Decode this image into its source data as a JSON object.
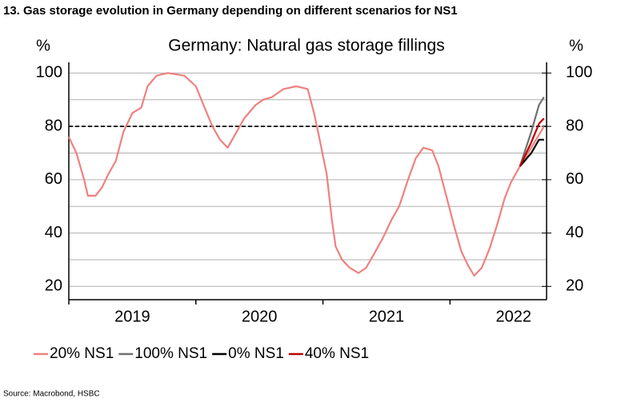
{
  "header": "13.  Gas storage evolution in Germany depending on different scenarios for NS1",
  "source": "Source: Macrobond, HSBC",
  "chart_data": {
    "type": "line",
    "title": "Germany: Natural gas storage fillings",
    "ylabel": "%",
    "y2label": "%",
    "xlim": [
      2019,
      2022.76
    ],
    "xticks": [
      2019,
      2020,
      2021,
      2022
    ],
    "ylim": [
      15,
      104
    ],
    "yticks": [
      20,
      40,
      60,
      80,
      100
    ],
    "minor_yticks": [
      30,
      50,
      70,
      90
    ],
    "y2lim": [
      15,
      104
    ],
    "y2ticks": [
      20,
      40,
      60,
      80,
      100
    ],
    "hline": 80,
    "grid": true,
    "legend": "bottom",
    "series": [
      {
        "name": "20% NS1",
        "color": "#f08080",
        "x": [
          2019.0,
          2019.06,
          2019.12,
          2019.15,
          2019.21,
          2019.26,
          2019.31,
          2019.37,
          2019.43,
          2019.5,
          2019.57,
          2019.62,
          2019.69,
          2019.78,
          2019.91,
          2020.0,
          2020.06,
          2020.13,
          2020.19,
          2020.25,
          2020.31,
          2020.38,
          2020.47,
          2020.53,
          2020.6,
          2020.69,
          2020.79,
          2020.88,
          2020.93,
          2020.97,
          2021.03,
          2021.07,
          2021.1,
          2021.15,
          2021.21,
          2021.28,
          2021.34,
          2021.4,
          2021.47,
          2021.54,
          2021.6,
          2021.67,
          2021.73,
          2021.79,
          2021.86,
          2021.91,
          2021.97,
          2022.03,
          2022.09,
          2022.14,
          2022.19,
          2022.25,
          2022.31,
          2022.37,
          2022.43,
          2022.48,
          2022.55,
          2022.64,
          2022.74
        ],
        "values": [
          76,
          70,
          60,
          54,
          54,
          57,
          62,
          67,
          78,
          85,
          87,
          95,
          99,
          100,
          99,
          95,
          88,
          80,
          75,
          72,
          77,
          83,
          88,
          90,
          91,
          94,
          95,
          94,
          85,
          76,
          62,
          45,
          35,
          30,
          27,
          25,
          27,
          32,
          38,
          45,
          50,
          60,
          68,
          72,
          71,
          65,
          54,
          43,
          33,
          28,
          24,
          27,
          34,
          43,
          53,
          59,
          65,
          72,
          80
        ]
      },
      {
        "name": "100% NS1",
        "color": "#707070",
        "x": [
          2022.55,
          2022.64,
          2022.7,
          2022.74
        ],
        "values": [
          65,
          78,
          88,
          91
        ]
      },
      {
        "name": "0% NS1",
        "color": "#000000",
        "x": [
          2022.55,
          2022.64,
          2022.7,
          2022.74
        ],
        "values": [
          65,
          70,
          75,
          75
        ]
      },
      {
        "name": "40% NS1",
        "color": "#c00000",
        "x": [
          2022.55,
          2022.64,
          2022.7,
          2022.74
        ],
        "values": [
          65,
          74,
          81,
          83
        ]
      }
    ]
  }
}
